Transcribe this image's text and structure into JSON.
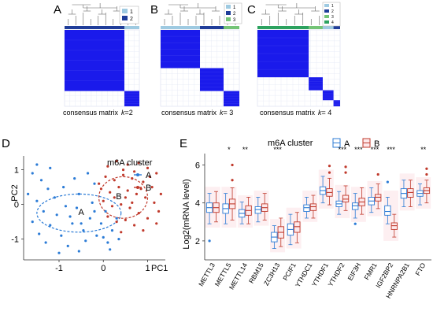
{
  "panels": {
    "A": {
      "letter": "A",
      "caption": "consensus matrix",
      "k_symbol": "k",
      "k_text": "=2",
      "legend": [
        "1",
        "2"
      ]
    },
    "B": {
      "letter": "B",
      "caption": "consensus matrix",
      "k_symbol": "k",
      "k_text": "= 3",
      "legend": [
        "1",
        "2",
        "3"
      ]
    },
    "C": {
      "letter": "C",
      "caption": "consensus matrix",
      "k_symbol": "k",
      "k_text": "= 4",
      "legend": [
        "1",
        "2",
        "3",
        "4"
      ]
    },
    "D": {
      "letter": "D"
    },
    "E": {
      "letter": "E"
    }
  },
  "colors": {
    "cluster_1": "#9ecae1",
    "cluster_2": "#1f3d99",
    "cluster_3": "#74c476",
    "cluster_4": "#2ca25f",
    "heat": "#1a1aeb",
    "group_A": "#2b7bd6",
    "group_B": "#c0392b",
    "ci_A": "#2b7bd6",
    "ci_B": "#c0392b",
    "box_A_fill": "#ffffff",
    "box_B_fill": "#fde8ea"
  },
  "chart_data": [
    {
      "type": "heatmap",
      "panel": "A",
      "title": "consensus matrix k=2",
      "clusters": [
        "1",
        "2"
      ],
      "blocks": [
        {
          "cluster": "2",
          "share": 0.8
        },
        {
          "cluster": "1",
          "share": 0.2
        }
      ]
    },
    {
      "type": "heatmap",
      "panel": "B",
      "title": "consensus matrix k= 3",
      "clusters": [
        "1",
        "2",
        "3"
      ],
      "blocks": [
        {
          "cluster": "1",
          "share": 0.5
        },
        {
          "cluster": "2",
          "share": 0.3
        },
        {
          "cluster": "3",
          "share": 0.2
        }
      ]
    },
    {
      "type": "heatmap",
      "panel": "C",
      "title": "consensus matrix k= 4",
      "clusters": [
        "1",
        "2",
        "3",
        "4"
      ],
      "blocks": [
        {
          "cluster": "4",
          "share": 0.62
        },
        {
          "cluster": "3",
          "share": 0.17
        },
        {
          "cluster": "1",
          "share": 0.13
        },
        {
          "cluster": "2",
          "share": 0.08
        }
      ]
    },
    {
      "type": "scatter",
      "panel": "D",
      "xlabel": "PC1",
      "ylabel": "PC2",
      "legend_title": "m6A cluster",
      "xlim": [
        -1.8,
        1.4
      ],
      "ylim": [
        -1.6,
        1.4
      ],
      "xticks": [
        -1,
        0,
        1
      ],
      "yticks": [
        -1,
        0,
        1
      ],
      "centroid_labels": [
        {
          "label": "A",
          "x": -0.5,
          "y": -0.3
        },
        {
          "label": "B",
          "x": 0.35,
          "y": 0.15
        }
      ],
      "series": [
        {
          "name": "A",
          "ellipse": {
            "cx": -0.55,
            "cy": -0.25,
            "rx": 0.95,
            "ry": 0.55
          },
          "points": [
            [
              -1.5,
              1.15
            ],
            [
              -1.6,
              0.9
            ],
            [
              -1.4,
              0.7
            ],
            [
              -1.2,
              1.05
            ],
            [
              -1.7,
              0.3
            ],
            [
              -1.5,
              0.1
            ],
            [
              -1.35,
              -0.2
            ],
            [
              -1.6,
              -0.5
            ],
            [
              -1.45,
              -0.85
            ],
            [
              -1.2,
              -0.6
            ],
            [
              -1.05,
              -0.3
            ],
            [
              -1.1,
              0.2
            ],
            [
              -0.9,
              0.5
            ],
            [
              -0.95,
              -0.9
            ],
            [
              -0.8,
              -1.2
            ],
            [
              -0.7,
              -0.55
            ],
            [
              -0.6,
              -0.1
            ],
            [
              -0.55,
              0.3
            ],
            [
              -0.45,
              -0.75
            ],
            [
              -0.4,
              -1.05
            ],
            [
              -0.3,
              -0.4
            ],
            [
              -0.25,
              0.05
            ],
            [
              -0.2,
              0.6
            ],
            [
              -0.15,
              -0.9
            ],
            [
              -0.05,
              -0.55
            ],
            [
              0.05,
              -0.2
            ],
            [
              0.1,
              -1.1
            ],
            [
              0.2,
              -0.75
            ],
            [
              0.3,
              -0.4
            ],
            [
              -0.65,
              0.75
            ],
            [
              -0.85,
              -0.05
            ],
            [
              -1.3,
              -1.1
            ],
            [
              -0.35,
              0.9
            ],
            [
              -0.75,
              -0.35
            ],
            [
              -0.5,
              -0.55
            ],
            [
              0.0,
              -0.95
            ],
            [
              -1.0,
              -1.4
            ],
            [
              -0.55,
              -1.35
            ],
            [
              0.15,
              -1.3
            ],
            [
              0.35,
              -1.0
            ],
            [
              -1.25,
              0.45
            ],
            [
              -0.2,
              -0.2
            ]
          ]
        },
        {
          "name": "B",
          "ellipse": {
            "cx": 0.45,
            "cy": 0.2,
            "rx": 0.55,
            "ry": 0.6
          },
          "points": [
            [
              0.1,
              1.1
            ],
            [
              0.3,
              1.25
            ],
            [
              0.55,
              1.15
            ],
            [
              0.8,
              1.2
            ],
            [
              1.0,
              1.05
            ],
            [
              1.2,
              0.9
            ],
            [
              0.05,
              0.8
            ],
            [
              0.25,
              0.7
            ],
            [
              0.45,
              0.85
            ],
            [
              0.65,
              0.75
            ],
            [
              0.9,
              0.65
            ],
            [
              1.1,
              0.5
            ],
            [
              1.3,
              0.3
            ],
            [
              -0.05,
              0.45
            ],
            [
              0.15,
              0.35
            ],
            [
              0.35,
              0.5
            ],
            [
              0.55,
              0.4
            ],
            [
              0.75,
              0.3
            ],
            [
              0.95,
              0.2
            ],
            [
              1.15,
              0.05
            ],
            [
              1.25,
              -0.2
            ],
            [
              0.0,
              0.1
            ],
            [
              0.2,
              -0.05
            ],
            [
              0.4,
              0.0
            ],
            [
              0.6,
              -0.1
            ],
            [
              0.8,
              -0.25
            ],
            [
              1.0,
              -0.4
            ],
            [
              1.2,
              -0.55
            ],
            [
              0.1,
              -0.35
            ],
            [
              0.3,
              -0.5
            ],
            [
              0.5,
              -0.45
            ],
            [
              0.7,
              -0.6
            ],
            [
              0.9,
              -0.75
            ],
            [
              0.4,
              -0.8
            ],
            [
              0.65,
              0.05
            ],
            [
              0.85,
              0.45
            ],
            [
              0.25,
              0.2
            ],
            [
              0.5,
              0.2
            ],
            [
              -0.1,
              0.6
            ],
            [
              1.05,
              0.8
            ],
            [
              0.7,
              0.95
            ],
            [
              0.45,
              1.0
            ]
          ]
        }
      ]
    },
    {
      "type": "box",
      "panel": "E",
      "xlabel": "",
      "ylabel": "Log2(mRNA level)",
      "legend_title": "m6A cluster",
      "ylim": [
        1.0,
        6.6
      ],
      "yticks": [
        2,
        4,
        6
      ],
      "categories": [
        "METTL3",
        "METTL5",
        "METTL14",
        "RBM15",
        "ZC3H13",
        "PCIF1",
        "YTHDC1",
        "YTHDF1",
        "YTHDF2",
        "EIF3H",
        "FMR1",
        "IGF2BP2",
        "HNRNPA2B1",
        "FTO"
      ],
      "significance": [
        "",
        "*",
        "**",
        "",
        "***",
        "",
        "",
        "",
        "***",
        "***",
        "***",
        "***",
        "",
        "**"
      ],
      "series": [
        {
          "name": "A",
          "values": [
            {
              "q1": 3.5,
              "median": 3.75,
              "q3": 4.0,
              "wlo": 2.9,
              "whi": 4.5
            },
            {
              "q1": 3.45,
              "median": 3.7,
              "q3": 3.95,
              "wlo": 2.9,
              "whi": 4.5
            },
            {
              "q1": 3.25,
              "median": 3.45,
              "q3": 3.65,
              "wlo": 2.9,
              "whi": 4.05
            },
            {
              "q1": 3.45,
              "median": 3.65,
              "q3": 3.8,
              "wlo": 3.0,
              "whi": 4.3
            },
            {
              "q1": 1.95,
              "median": 2.2,
              "q3": 2.45,
              "wlo": 1.6,
              "whi": 2.8
            },
            {
              "q1": 2.3,
              "median": 2.6,
              "q3": 2.9,
              "wlo": 1.8,
              "whi": 3.4
            },
            {
              "q1": 3.55,
              "median": 3.75,
              "q3": 3.9,
              "wlo": 3.2,
              "whi": 4.3
            },
            {
              "q1": 4.45,
              "median": 4.65,
              "q3": 4.85,
              "wlo": 4.0,
              "whi": 5.4
            },
            {
              "q1": 3.8,
              "median": 3.95,
              "q3": 4.1,
              "wlo": 3.4,
              "whi": 4.6
            },
            {
              "q1": 3.65,
              "median": 3.85,
              "q3": 4.0,
              "wlo": 3.2,
              "whi": 4.5
            },
            {
              "q1": 3.9,
              "median": 4.1,
              "q3": 4.3,
              "wlo": 3.5,
              "whi": 4.8
            },
            {
              "q1": 3.35,
              "median": 3.55,
              "q3": 3.85,
              "wlo": 2.9,
              "whi": 4.3
            },
            {
              "q1": 4.25,
              "median": 4.5,
              "q3": 4.75,
              "wlo": 3.8,
              "whi": 5.2
            },
            {
              "q1": 4.35,
              "median": 4.5,
              "q3": 4.65,
              "wlo": 3.9,
              "whi": 5.0
            }
          ]
        },
        {
          "name": "B",
          "values": [
            {
              "q1": 3.5,
              "median": 3.75,
              "q3": 4.0,
              "wlo": 3.0,
              "whi": 4.6
            },
            {
              "q1": 3.7,
              "median": 3.95,
              "q3": 4.2,
              "wlo": 3.1,
              "whi": 4.8
            },
            {
              "q1": 3.35,
              "median": 3.6,
              "q3": 3.85,
              "wlo": 2.9,
              "whi": 4.3
            },
            {
              "q1": 3.55,
              "median": 3.75,
              "q3": 3.95,
              "wlo": 3.1,
              "whi": 4.5
            },
            {
              "q1": 2.15,
              "median": 2.45,
              "q3": 2.75,
              "wlo": 1.7,
              "whi": 3.2
            },
            {
              "q1": 2.45,
              "median": 2.75,
              "q3": 3.0,
              "wlo": 1.9,
              "whi": 3.5
            },
            {
              "q1": 3.6,
              "median": 3.8,
              "q3": 3.95,
              "wlo": 3.2,
              "whi": 4.4
            },
            {
              "q1": 4.35,
              "median": 4.55,
              "q3": 4.75,
              "wlo": 3.9,
              "whi": 5.3
            },
            {
              "q1": 4.05,
              "median": 4.2,
              "q3": 4.4,
              "wlo": 3.6,
              "whi": 4.9
            },
            {
              "q1": 3.85,
              "median": 4.05,
              "q3": 4.25,
              "wlo": 3.4,
              "whi": 4.8
            },
            {
              "q1": 4.1,
              "median": 4.3,
              "q3": 4.45,
              "wlo": 3.7,
              "whi": 5.0
            },
            {
              "q1": 2.6,
              "median": 2.8,
              "q3": 2.95,
              "wlo": 2.2,
              "whi": 3.4
            },
            {
              "q1": 4.3,
              "median": 4.55,
              "q3": 4.75,
              "wlo": 3.8,
              "whi": 5.2
            },
            {
              "q1": 4.5,
              "median": 4.65,
              "q3": 4.8,
              "wlo": 4.0,
              "whi": 5.2
            }
          ]
        }
      ],
      "outliers": [
        {
          "category": "METTL5",
          "series": "B",
          "values": [
            6.0,
            5.2
          ]
        },
        {
          "category": "METTL3",
          "series": "A",
          "values": [
            2.0
          ]
        },
        {
          "category": "YTHDF1",
          "series": "B",
          "values": [
            5.95,
            5.6
          ]
        },
        {
          "category": "YTHDF2",
          "series": "B",
          "values": [
            5.9,
            5.6
          ]
        },
        {
          "category": "FMR1",
          "series": "B",
          "values": [
            5.5
          ]
        },
        {
          "category": "IGF2BP2",
          "series": "A",
          "values": [
            5.1
          ]
        },
        {
          "category": "FTO",
          "series": "B",
          "values": [
            5.8,
            5.5
          ]
        },
        {
          "category": "EIF3H",
          "series": "A",
          "values": [
            2.9
          ]
        }
      ]
    }
  ]
}
